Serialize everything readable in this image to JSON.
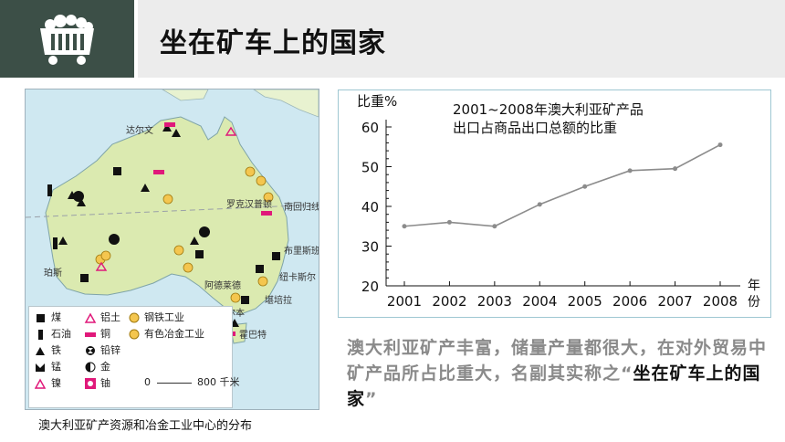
{
  "header": {
    "title": "坐在矿车上的国家",
    "icon": "mine-cart-icon"
  },
  "map": {
    "caption": "澳大利亚矿产资源和冶金工业中心的分布",
    "places": [
      "达尔文",
      "罗克汉普顿",
      "南回归线",
      "布里斯班",
      "珀斯",
      "阿德莱德",
      "纽卡斯尔",
      "堪培拉",
      "墨尔本",
      "霍巴特"
    ],
    "legend": [
      {
        "label": "煤",
        "icon": "coal-icon"
      },
      {
        "label": "铝土",
        "icon": "bauxite-icon"
      },
      {
        "label": "钢铁工业",
        "icon": "steel-industry-icon"
      },
      {
        "label": "石油",
        "icon": "oil-icon"
      },
      {
        "label": "铜",
        "icon": "copper-icon"
      },
      {
        "label": "有色冶金工业",
        "icon": "nonferrous-industry-icon"
      },
      {
        "label": "铁",
        "icon": "iron-icon"
      },
      {
        "label": "铅锌",
        "icon": "lead-zinc-icon"
      },
      {
        "label": "锰",
        "icon": "manganese-icon"
      },
      {
        "label": "金",
        "icon": "gold-icon"
      },
      {
        "label": "镍",
        "icon": "nickel-icon"
      },
      {
        "label": "铀",
        "icon": "uranium-icon"
      }
    ],
    "scale": {
      "start": "0",
      "end": "800 千米"
    }
  },
  "chart_data": {
    "type": "line",
    "title_line1": "2001~2008年澳大利亚矿产品",
    "title_line2": "出口占商品出口总额的比重",
    "ylabel": "比重%",
    "xlabel_1": "年",
    "xlabel_2": "份",
    "x": [
      2001,
      2002,
      2003,
      2004,
      2005,
      2006,
      2007,
      2008
    ],
    "values": [
      35,
      36,
      35,
      40.5,
      45,
      49,
      49.5,
      55.5
    ],
    "ylim": [
      20,
      60
    ],
    "yticks": [
      20,
      30,
      40,
      50,
      60
    ],
    "line_color": "#8c8c8c"
  },
  "description": {
    "text": "澳大利亚矿产丰富，储量产量都很大，在对外贸易中矿产品所占比重大，名副其实称之“",
    "highlight": "坐在矿车上的国家",
    "end": "”"
  }
}
